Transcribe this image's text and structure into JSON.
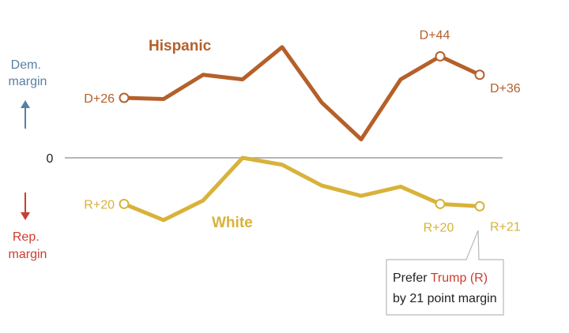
{
  "chart_data": {
    "type": "line",
    "ylabel_positive": "Dem.\nmargin",
    "ylabel_negative": "Rep.\nmargin",
    "zero_label": "0",
    "ylim": [
      -22,
      46
    ],
    "x": [
      0,
      1,
      2,
      3,
      4,
      5,
      6,
      7,
      8,
      9
    ],
    "series": [
      {
        "name": "Hispanic",
        "color": "#b5602a",
        "values": [
          26,
          25.5,
          36,
          34,
          48,
          24,
          8,
          34,
          44,
          36
        ],
        "point_labels": {
          "0": "D+26",
          "8": "D+44",
          "9": "D+36"
        },
        "markers": [
          0,
          8,
          9
        ]
      },
      {
        "name": "White",
        "color": "#d8b23a",
        "values": [
          -20,
          -27,
          -18.5,
          0,
          -3,
          -12,
          -16.5,
          -12.5,
          -20,
          -21
        ],
        "point_labels": {
          "0": "R+20",
          "8": "R+20",
          "9": "R+21"
        },
        "markers": [
          0,
          8,
          9
        ]
      }
    ],
    "colors": {
      "dem": "#5a7fa4",
      "rep": "#cc3d2e",
      "zero_line": "#9e9e9e"
    },
    "callout": {
      "line1_prefix": "Prefer ",
      "line1_highlight": "Trump (R)",
      "line2": "by 21 point margin"
    }
  }
}
